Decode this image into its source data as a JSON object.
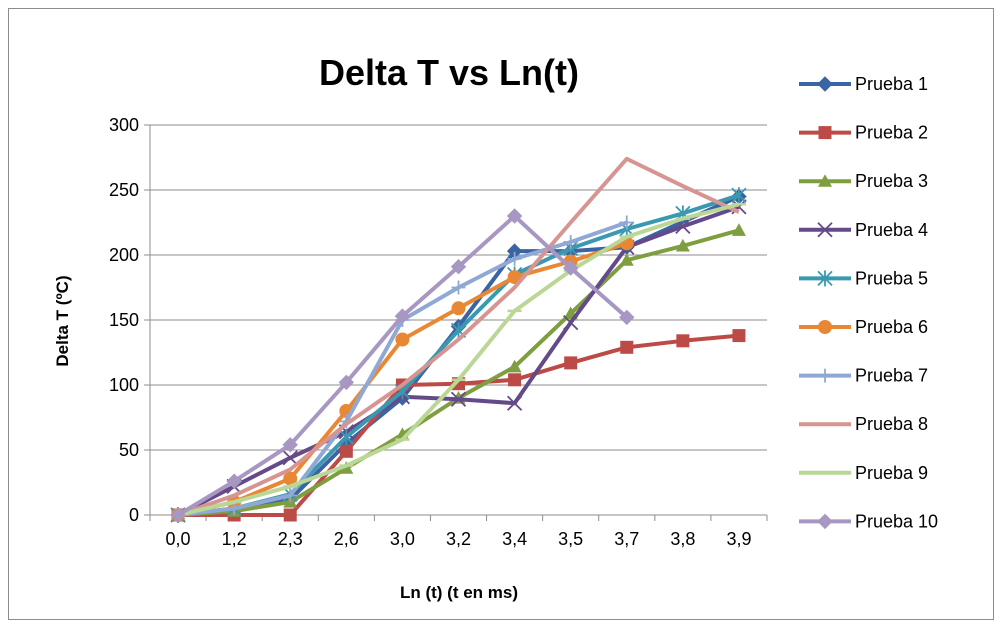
{
  "chart_data": {
    "type": "line",
    "title": "Delta T vs Ln(t)",
    "xlabel": "Ln (t) (t en ms)",
    "ylabel": "Delta T (ºC)",
    "categories": [
      "0,0",
      "1,2",
      "2,3",
      "2,6",
      "3,0",
      "3,2",
      "3,4",
      "3,5",
      "3,7",
      "3,8",
      "3,9"
    ],
    "ylim": [
      0,
      300
    ],
    "yticks": [
      "0",
      "50",
      "100",
      "150",
      "200",
      "250",
      "300"
    ],
    "grid": true,
    "legend_position": "right",
    "series": [
      {
        "name": "Prueba 1",
        "color": "#3a64a3",
        "marker": "diamond",
        "values": [
          0,
          5,
          12,
          55,
          90,
          145,
          203,
          203,
          206,
          null,
          245
        ]
      },
      {
        "name": "Prueba 2",
        "color": "#bc4b48",
        "marker": "square",
        "values": [
          0,
          0,
          0,
          49,
          100,
          101,
          104,
          117,
          129,
          134,
          138
        ]
      },
      {
        "name": "Prueba 3",
        "color": "#7f9e3f",
        "marker": "triangle",
        "values": [
          0,
          3,
          10,
          36,
          62,
          90,
          114,
          155,
          196,
          207,
          219
        ]
      },
      {
        "name": "Prueba 4",
        "color": "#654a8a",
        "marker": "x",
        "values": [
          0,
          22,
          44,
          64,
          91,
          89,
          86,
          148,
          206,
          222,
          237
        ]
      },
      {
        "name": "Prueba 5",
        "color": "#3a99b1",
        "marker": "asterisk",
        "values": [
          0,
          5,
          16,
          60,
          95,
          142,
          185,
          205,
          220,
          232,
          246
        ]
      },
      {
        "name": "Prueba 6",
        "color": "#e98834",
        "marker": "circle",
        "values": [
          0,
          10,
          28,
          80,
          135,
          159,
          183,
          195,
          209,
          null,
          null
        ]
      },
      {
        "name": "Prueba 7",
        "color": "#8fa9d4",
        "marker": "plus",
        "values": [
          0,
          5,
          15,
          72,
          150,
          175,
          197,
          210,
          225,
          null,
          null
        ]
      },
      {
        "name": "Prueba 8",
        "color": "#d79592",
        "marker": "none",
        "values": [
          0,
          15,
          35,
          70,
          100,
          135,
          175,
          225,
          274,
          253,
          233
        ]
      },
      {
        "name": "Prueba 9",
        "color": "#bbd795",
        "marker": "dash",
        "values": [
          0,
          10,
          22,
          38,
          58,
          104,
          157,
          188,
          214,
          228,
          239
        ]
      },
      {
        "name": "Prueba 10",
        "color": "#a797c2",
        "marker": "diamond",
        "values": [
          0,
          26,
          54,
          102,
          153,
          191,
          230,
          190,
          152,
          null,
          null
        ]
      }
    ]
  }
}
